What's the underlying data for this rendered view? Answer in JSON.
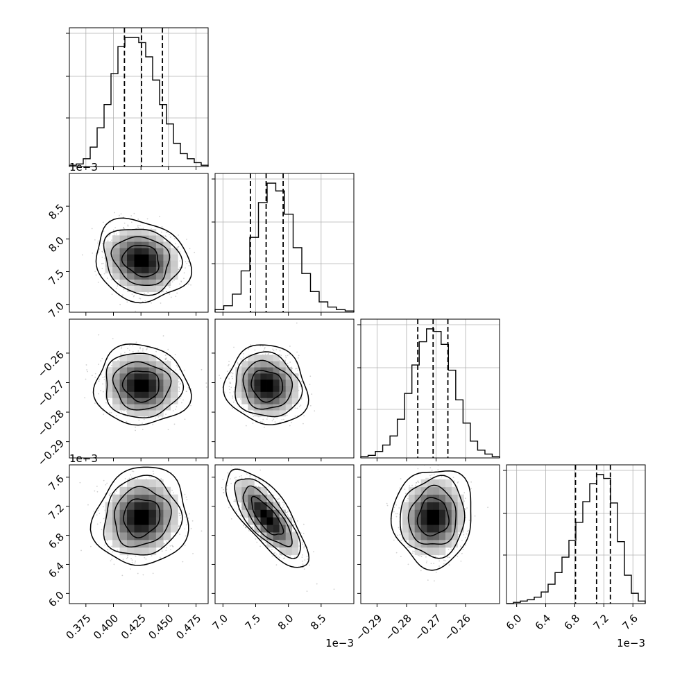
{
  "chart_data": {
    "type": "corner",
    "n_params": 4,
    "grid": true,
    "colors": {
      "ink": "#000000",
      "grid": "#b0b0b0",
      "points": "#9a9a9a"
    },
    "quantiles": [
      0.16,
      0.5,
      0.84
    ],
    "params": [
      {
        "range": [
          0.36,
          0.486
        ],
        "ticks": [
          0.375,
          0.4,
          0.425,
          0.45,
          0.475
        ],
        "tick_labels": [
          "0.375",
          "0.400",
          "0.425",
          "0.450",
          "0.475"
        ],
        "offset_text": "",
        "quantile_values": [
          0.41,
          0.4255,
          0.4445
        ],
        "mean": 0.4255,
        "std": 0.0165
      },
      {
        "range": [
          6.88,
          9.0
        ],
        "ticks": [
          7.0,
          7.5,
          8.0,
          8.5
        ],
        "tick_labels": [
          "7.0",
          "7.5",
          "8.0",
          "8.5"
        ],
        "offset_text": "1e−3",
        "quantile_values": [
          7.42,
          7.66,
          7.92
        ],
        "mean": 7.67,
        "std": 0.24
      },
      {
        "range": [
          -0.2955,
          -0.2485
        ],
        "ticks": [
          -0.29,
          -0.28,
          -0.27,
          -0.26
        ],
        "tick_labels": [
          "−0.29",
          "−0.28",
          "−0.27",
          "−0.26"
        ],
        "offset_text": "",
        "quantile_values": [
          -0.2762,
          -0.271,
          -0.266
        ],
        "mean": -0.271,
        "std": 0.0052
      },
      {
        "range": [
          5.86,
          7.77
        ],
        "ticks": [
          6.0,
          6.4,
          6.8,
          7.2,
          7.6
        ],
        "tick_labels": [
          "6.0",
          "6.4",
          "6.8",
          "7.2",
          "7.6"
        ],
        "offset_text": "1e−3",
        "quantile_values": [
          6.81,
          7.1,
          7.29
        ],
        "mean": 7.05,
        "std": 0.26
      }
    ],
    "histograms": [
      [
        0.01,
        0.02,
        0.06,
        0.15,
        0.3,
        0.48,
        0.72,
        0.93,
        1.0,
        1.0,
        0.96,
        0.85,
        0.67,
        0.48,
        0.33,
        0.18,
        0.1,
        0.06,
        0.03,
        0.01
      ],
      [
        0.02,
        0.05,
        0.14,
        0.32,
        0.58,
        0.85,
        1.0,
        0.94,
        0.76,
        0.5,
        0.3,
        0.16,
        0.08,
        0.04,
        0.02,
        0.01
      ],
      [
        0.01,
        0.02,
        0.05,
        0.1,
        0.17,
        0.3,
        0.5,
        0.72,
        0.9,
        1.0,
        0.98,
        0.88,
        0.68,
        0.45,
        0.27,
        0.13,
        0.06,
        0.03,
        0.01
      ],
      [
        0.0,
        0.01,
        0.02,
        0.03,
        0.05,
        0.09,
        0.15,
        0.24,
        0.36,
        0.49,
        0.63,
        0.79,
        0.93,
        1.0,
        0.97,
        0.78,
        0.48,
        0.22,
        0.08,
        0.02
      ]
    ],
    "correlations": [
      {
        "row": 1,
        "col": 0,
        "rho": -0.15
      },
      {
        "row": 2,
        "col": 0,
        "rho": -0.05
      },
      {
        "row": 2,
        "col": 1,
        "rho": -0.1
      },
      {
        "row": 3,
        "col": 0,
        "rho": 0.08
      },
      {
        "row": 3,
        "col": 1,
        "rho": -0.75
      },
      {
        "row": 3,
        "col": 2,
        "rho": 0.05
      }
    ]
  }
}
